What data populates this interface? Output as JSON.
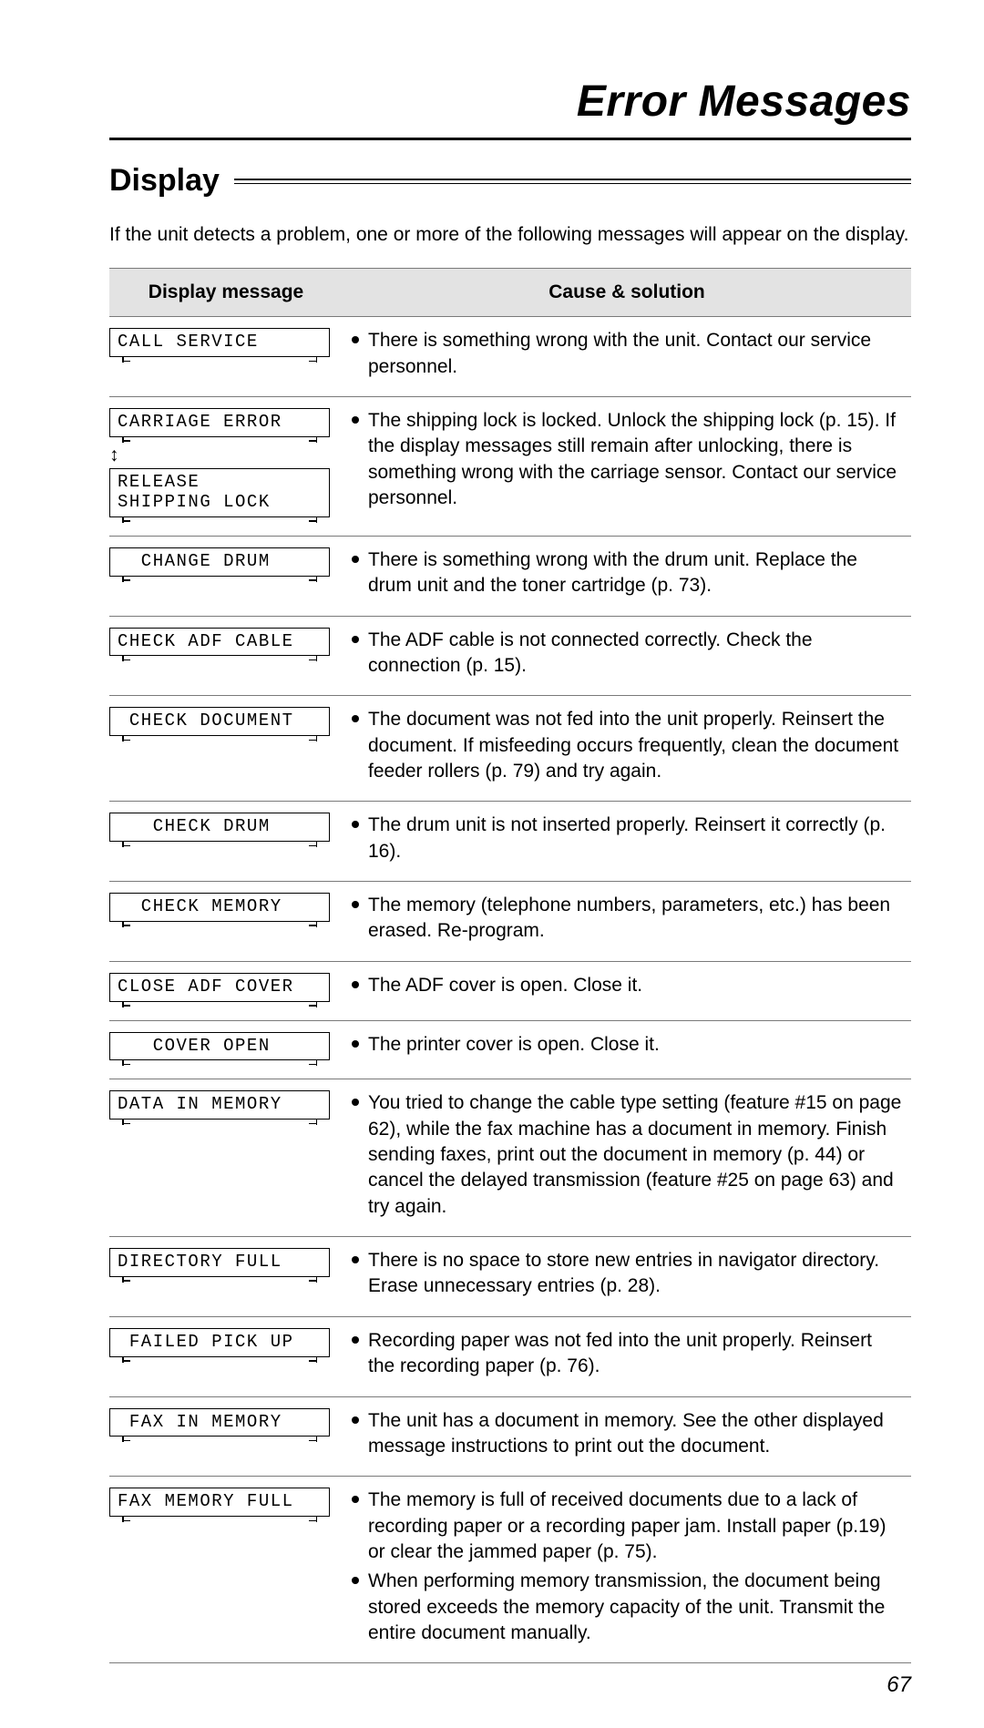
{
  "chapter_title": "Error Messages",
  "section_title": "Display",
  "intro": "If the unit detects a problem, one or more of the following messages will appear on the display.",
  "headers": {
    "display": "Display message",
    "cause": "Cause & solution"
  },
  "rows": [
    {
      "lcd": [
        "CALL SERVICE"
      ],
      "sol": [
        "There is something wrong with the unit. Contact our service personnel."
      ]
    },
    {
      "lcd": [
        "CARRIAGE ERROR",
        "RELEASE\nSHIPPING LOCK"
      ],
      "arrow": true,
      "sol": [
        "The shipping lock is locked. Unlock the shipping lock (p. 15). If the display messages still remain after unlocking, there is something wrong with the carriage sensor. Contact our service personnel."
      ]
    },
    {
      "lcd": [
        "  CHANGE DRUM"
      ],
      "sol": [
        "There is something wrong with the drum unit. Replace the drum unit and the toner cartridge (p. 73)."
      ]
    },
    {
      "lcd": [
        "CHECK ADF CABLE"
      ],
      "sol": [
        "The ADF cable is not connected correctly. Check the connection (p. 15)."
      ]
    },
    {
      "lcd": [
        " CHECK DOCUMENT"
      ],
      "sol": [
        "The document was not fed into the unit properly. Reinsert the document. If misfeeding occurs frequently, clean the document feeder rollers (p. 79) and try again."
      ]
    },
    {
      "lcd": [
        "   CHECK DRUM"
      ],
      "sol": [
        "The drum unit is not inserted properly. Reinsert it correctly (p. 16)."
      ]
    },
    {
      "lcd": [
        "  CHECK MEMORY"
      ],
      "sol": [
        "The memory (telephone numbers, parameters, etc.) has been erased. Re-program."
      ]
    },
    {
      "lcd": [
        "CLOSE ADF COVER"
      ],
      "sol": [
        "The ADF cover is open. Close it."
      ]
    },
    {
      "lcd": [
        "   COVER OPEN"
      ],
      "sol": [
        "The printer cover is open. Close it."
      ]
    },
    {
      "lcd": [
        "DATA IN MEMORY"
      ],
      "sol": [
        "You tried to change the cable type setting (feature #15 on page 62), while the fax machine has a document in memory. Finish sending faxes, print out the document in memory (p. 44) or cancel the delayed transmission (feature #25 on page 63) and try again."
      ]
    },
    {
      "lcd": [
        "DIRECTORY FULL"
      ],
      "sol": [
        "There is no space to store new entries in navigator directory. Erase unnecessary entries (p. 28)."
      ]
    },
    {
      "lcd": [
        " FAILED PICK UP"
      ],
      "sol": [
        "Recording paper was not fed into the unit properly. Reinsert the recording paper (p. 76)."
      ]
    },
    {
      "lcd": [
        " FAX IN MEMORY"
      ],
      "sol": [
        "The unit has a document in memory. See the other displayed message instructions to print out the document."
      ]
    },
    {
      "lcd": [
        "FAX MEMORY FULL"
      ],
      "sol": [
        "The memory is full of received documents due to a lack of recording paper or a recording paper jam. Install paper (p.19) or clear the jammed paper (p. 75).",
        "When performing memory transmission, the document being stored exceeds the memory capacity of the unit. Transmit the entire document manually."
      ]
    }
  ],
  "page_num": "67"
}
